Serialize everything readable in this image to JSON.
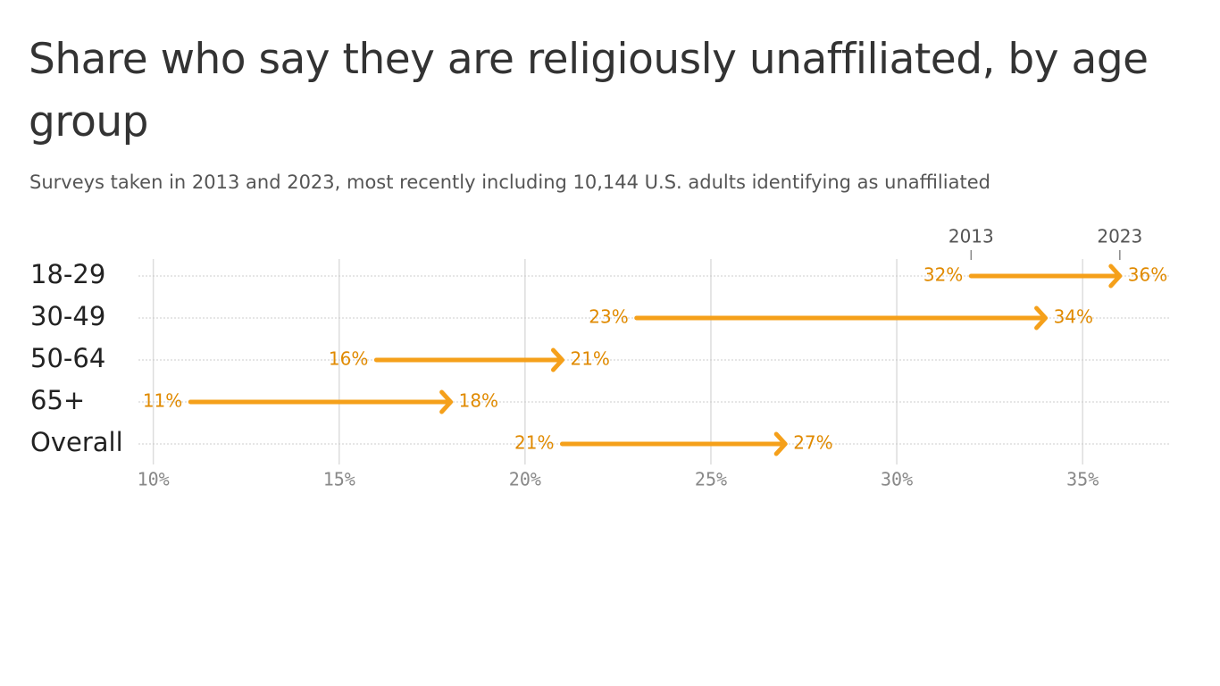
{
  "chart_data": {
    "type": "arrow",
    "title": "Share who say they are religiously unaffiliated, by age group",
    "subtitle": "Surveys taken in 2013 and 2023, most recently including 10,144 U.S. adults identifying as unaffiliated",
    "categories": [
      "18-29",
      "30-49",
      "50-64",
      "65+",
      "Overall"
    ],
    "series": [
      {
        "name": "2013",
        "color": "#f5a01a",
        "values": [
          32,
          23,
          16,
          11,
          21
        ],
        "value_labels": [
          "32%",
          "23%",
          "16%",
          "11%",
          "21%"
        ]
      },
      {
        "name": "2023",
        "color": "#f5a01a",
        "values": [
          36,
          34,
          21,
          18,
          27
        ],
        "value_labels": [
          "36%",
          "34%",
          "21%",
          "18%",
          "27%"
        ]
      }
    ],
    "xlim": [
      9.6,
      37.35
    ],
    "xticks": [
      {
        "value": 10,
        "label": "10%"
      },
      {
        "value": 15,
        "label": "15%"
      },
      {
        "value": 20,
        "label": "20%"
      },
      {
        "value": 25,
        "label": "25%"
      },
      {
        "value": 30,
        "label": "30%"
      },
      {
        "value": 35,
        "label": "35%"
      }
    ],
    "grid": true
  }
}
